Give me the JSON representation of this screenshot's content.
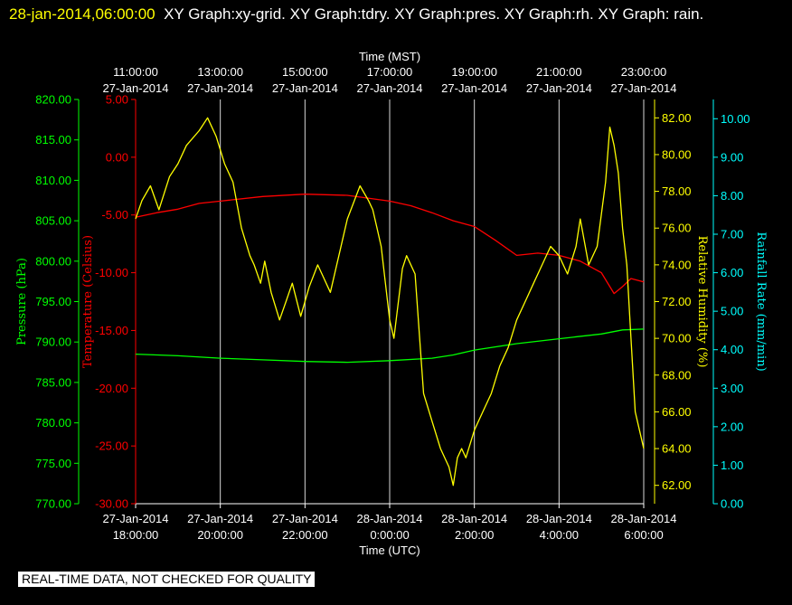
{
  "header": {
    "timestamp": "28-jan-2014,06:00:00",
    "graphs": "XY Graph:xy-grid.  XY Graph:tdry.  XY Graph:pres.  XY Graph:rh.  XY Graph: rain."
  },
  "notice": "REAL-TIME DATA, NOT CHECKED FOR QUALITY",
  "colors": {
    "background": "#000000",
    "grid": "#ffffff",
    "pressure": "#00ff00",
    "temperature": "#ff0000",
    "humidity": "#ffff00",
    "rain": "#00ffff"
  },
  "chart_data": {
    "type": "line",
    "grid": true,
    "x_top": {
      "label": "Time (MST)",
      "ticks": [
        [
          "11:00:00",
          "27-Jan-2014"
        ],
        [
          "13:00:00",
          "27-Jan-2014"
        ],
        [
          "15:00:00",
          "27-Jan-2014"
        ],
        [
          "17:00:00",
          "27-Jan-2014"
        ],
        [
          "19:00:00",
          "27-Jan-2014"
        ],
        [
          "21:00:00",
          "27-Jan-2014"
        ],
        [
          "23:00:00",
          "27-Jan-2014"
        ]
      ]
    },
    "x_bottom": {
      "label": "Time (UTC)",
      "range_hours": [
        0,
        12
      ],
      "ticks": [
        [
          "27-Jan-2014",
          "18:00:00"
        ],
        [
          "27-Jan-2014",
          "20:00:00"
        ],
        [
          "27-Jan-2014",
          "22:00:00"
        ],
        [
          "28-Jan-2014",
          "0:00:00"
        ],
        [
          "28-Jan-2014",
          "2:00:00"
        ],
        [
          "28-Jan-2014",
          "4:00:00"
        ],
        [
          "28-Jan-2014",
          "6:00:00"
        ]
      ]
    },
    "axes": {
      "pressure": {
        "label": "Pressure (hPa)",
        "ylim": [
          770,
          820
        ],
        "ticks": [
          "770.00",
          "775.00",
          "780.00",
          "785.00",
          "790.00",
          "795.00",
          "800.00",
          "805.00",
          "810.00",
          "815.00",
          "820.00"
        ]
      },
      "temperature": {
        "label": "Temperature (Celsius)",
        "ylim": [
          -30,
          5
        ],
        "ticks": [
          "-30.00",
          "-25.00",
          "-20.00",
          "-15.00",
          "-10.00",
          "-5.00",
          "0.00",
          "5.00"
        ]
      },
      "humidity": {
        "label": "Relative Humidity (%)",
        "ylim": [
          61,
          83
        ],
        "ticks": [
          "62.00",
          "64.00",
          "66.00",
          "68.00",
          "70.00",
          "72.00",
          "74.00",
          "76.00",
          "78.00",
          "80.00",
          "82.00"
        ]
      },
      "rain": {
        "label": "Rainfall Rate (mm/min)",
        "ylim": [
          0,
          10.5
        ],
        "ticks": [
          "0.00",
          "1.00",
          "2.00",
          "3.00",
          "4.00",
          "5.00",
          "6.00",
          "7.00",
          "8.00",
          "9.00",
          "10.00"
        ]
      }
    },
    "series": [
      {
        "name": "pres",
        "axis": "pressure",
        "x": [
          0,
          1,
          2,
          3,
          4,
          5,
          6,
          7,
          7.5,
          8,
          9,
          10,
          11,
          11.5,
          12
        ],
        "values": [
          788.5,
          788.3,
          788.0,
          787.8,
          787.6,
          787.5,
          787.7,
          788.0,
          788.4,
          789.0,
          789.8,
          790.4,
          791.0,
          791.5,
          791.6
        ]
      },
      {
        "name": "tdry",
        "axis": "temperature",
        "x": [
          0,
          0.5,
          1,
          1.5,
          2,
          3,
          4,
          5,
          6,
          6.5,
          7,
          7.5,
          8,
          8.5,
          9,
          9.5,
          10,
          10.5,
          11,
          11.3,
          11.5,
          11.7,
          12
        ],
        "values": [
          -5.2,
          -4.8,
          -4.5,
          -4.0,
          -3.8,
          -3.4,
          -3.2,
          -3.3,
          -3.8,
          -4.2,
          -4.8,
          -5.5,
          -6.0,
          -7.2,
          -8.5,
          -8.3,
          -8.5,
          -9.0,
          -10.0,
          -11.8,
          -11.2,
          -10.5,
          -10.8
        ]
      },
      {
        "name": "rh",
        "axis": "humidity",
        "x": [
          0,
          0.15,
          0.35,
          0.55,
          0.8,
          1.0,
          1.2,
          1.5,
          1.7,
          1.9,
          2.1,
          2.3,
          2.5,
          2.7,
          2.8,
          2.95,
          3.05,
          3.2,
          3.4,
          3.55,
          3.7,
          3.9,
          4.1,
          4.3,
          4.4,
          4.6,
          5.0,
          5.3,
          5.5,
          5.6,
          5.7,
          5.8,
          5.9,
          6.0,
          6.1,
          6.3,
          6.4,
          6.6,
          6.8,
          7.0,
          7.2,
          7.4,
          7.5,
          7.6,
          7.7,
          7.8,
          8.0,
          8.2,
          8.4,
          8.6,
          8.8,
          9.0,
          9.2,
          9.4,
          9.6,
          9.8,
          10.0,
          10.2,
          10.4,
          10.5,
          10.7,
          10.9,
          11.1,
          11.2,
          11.3,
          11.4,
          11.5,
          11.6,
          11.7,
          11.8,
          11.9,
          12.0
        ],
        "values": [
          76.5,
          77.5,
          78.3,
          77.0,
          78.8,
          79.5,
          80.5,
          81.3,
          82.0,
          81.0,
          79.5,
          78.5,
          76.0,
          74.5,
          74.0,
          73.0,
          74.2,
          72.5,
          71.0,
          72.0,
          73.0,
          71.2,
          72.8,
          74.0,
          73.5,
          72.5,
          76.5,
          78.3,
          77.5,
          77.0,
          76.0,
          75.0,
          73.0,
          71.0,
          70.0,
          73.8,
          74.5,
          73.5,
          67.0,
          65.5,
          64.0,
          63.0,
          62.0,
          63.5,
          64.0,
          63.5,
          65.0,
          66.0,
          67.0,
          68.5,
          69.5,
          71.0,
          72.0,
          73.0,
          74.0,
          75.0,
          74.5,
          73.5,
          75.0,
          76.5,
          74.0,
          75.0,
          78.5,
          81.5,
          80.5,
          79.0,
          76.0,
          74.0,
          70.0,
          66.0,
          65.0,
          64.0
        ]
      }
    ]
  }
}
